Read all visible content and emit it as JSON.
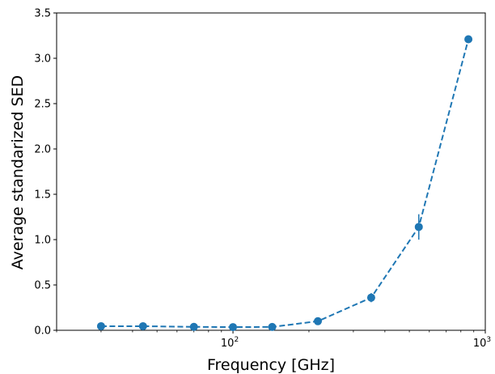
{
  "chart_data": {
    "type": "line",
    "title": "",
    "xlabel": "Frequency [GHz]",
    "ylabel": "Average standarized SED",
    "xscale": "log",
    "xlim": [
      20,
      1000
    ],
    "ylim": [
      0,
      3.5
    ],
    "grid": false,
    "legend": "none",
    "x_ticks": [
      {
        "value": 100,
        "base": "10",
        "exp": "2"
      },
      {
        "value": 1000,
        "base": "10",
        "exp": "3"
      }
    ],
    "y_ticks": [
      {
        "value": 0.0,
        "label": "0.0"
      },
      {
        "value": 0.5,
        "label": "0.5"
      },
      {
        "value": 1.0,
        "label": "1.0"
      },
      {
        "value": 1.5,
        "label": "1.5"
      },
      {
        "value": 2.0,
        "label": "2.0"
      },
      {
        "value": 2.5,
        "label": "2.5"
      },
      {
        "value": 3.0,
        "label": "3.0"
      },
      {
        "value": 3.5,
        "label": "3.5"
      }
    ],
    "series": [
      {
        "line_style": "dashed",
        "marker": "circle",
        "color": "#1f77b4",
        "points": [
          {
            "x": 30,
            "y": 0.045,
            "err": 0.01
          },
          {
            "x": 44,
            "y": 0.045,
            "err": 0.01
          },
          {
            "x": 70,
            "y": 0.038,
            "err": 0.01
          },
          {
            "x": 100,
            "y": 0.035,
            "err": 0.01
          },
          {
            "x": 143,
            "y": 0.037,
            "err": 0.01
          },
          {
            "x": 217,
            "y": 0.1,
            "err": 0.02
          },
          {
            "x": 353,
            "y": 0.36,
            "err": 0.05
          },
          {
            "x": 545,
            "y": 1.14,
            "err": 0.14
          },
          {
            "x": 857,
            "y": 3.21,
            "err": 0.03
          }
        ]
      }
    ]
  }
}
